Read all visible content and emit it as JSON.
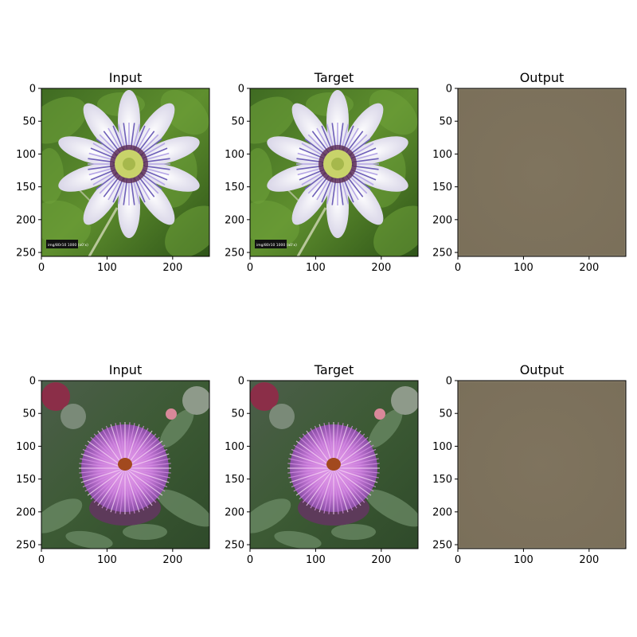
{
  "chart_data": [
    {
      "type": "image",
      "title": "Input",
      "xlim": [
        0,
        256
      ],
      "ylim": [
        256,
        0
      ],
      "xticks": [
        0,
        100,
        200
      ],
      "yticks": [
        0,
        50,
        100,
        150,
        200,
        250
      ],
      "content": "passion-flower",
      "caption_overlay": "img/80r10 1000 (a0’x)"
    },
    {
      "type": "image",
      "title": "Target",
      "xlim": [
        0,
        256
      ],
      "ylim": [
        256,
        0
      ],
      "xticks": [
        0,
        100,
        200
      ],
      "yticks": [
        0,
        50,
        100,
        150,
        200,
        250
      ],
      "content": "passion-flower",
      "caption_overlay": "img/80r10 1000 (a0’x)"
    },
    {
      "type": "image",
      "title": "Output",
      "xlim": [
        0,
        256
      ],
      "ylim": [
        256,
        0
      ],
      "xticks": [
        0,
        100,
        200
      ],
      "yticks": [
        0,
        50,
        100,
        150,
        200,
        250
      ],
      "content": "flat-blur",
      "fill_color": "#7f735c"
    },
    {
      "type": "image",
      "title": "Input",
      "xlim": [
        0,
        256
      ],
      "ylim": [
        256,
        0
      ],
      "xticks": [
        0,
        100,
        200
      ],
      "yticks": [
        0,
        50,
        100,
        150,
        200,
        250
      ],
      "content": "artichoke-flower"
    },
    {
      "type": "image",
      "title": "Target",
      "xlim": [
        0,
        256
      ],
      "ylim": [
        256,
        0
      ],
      "xticks": [
        0,
        100,
        200
      ],
      "yticks": [
        0,
        50,
        100,
        150,
        200,
        250
      ],
      "content": "artichoke-flower"
    },
    {
      "type": "image",
      "title": "Output",
      "xlim": [
        0,
        256
      ],
      "ylim": [
        256,
        0
      ],
      "xticks": [
        0,
        100,
        200
      ],
      "yticks": [
        0,
        50,
        100,
        150,
        200,
        250
      ],
      "content": "flat-blur",
      "fill_color": "#7e725c"
    }
  ]
}
